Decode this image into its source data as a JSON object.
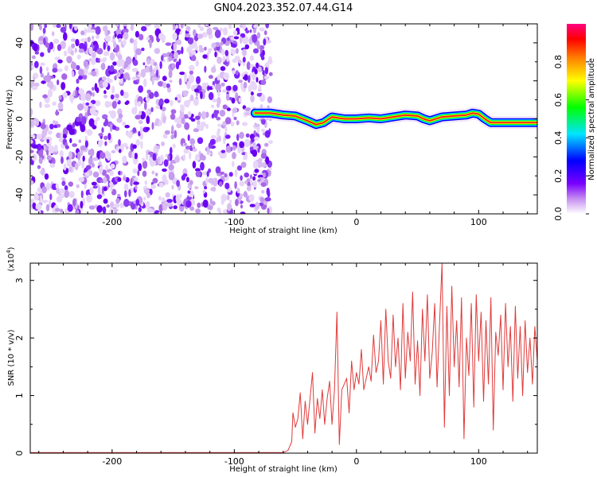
{
  "title": "GN04.2023.352.07.44.G14",
  "chart_data": [
    {
      "type": "heatmap",
      "xlabel": "Height of straight line (km)",
      "ylabel": "Frequency (Hz)",
      "xlim": [
        -267,
        148
      ],
      "ylim": [
        -50,
        50
      ],
      "xticks": [
        -200,
        -100,
        0,
        100
      ],
      "yticks": [
        -40,
        -20,
        0,
        20,
        40
      ],
      "noise_region_x": [
        -267,
        -70
      ],
      "ridge_x": [
        -83,
        -70,
        -60,
        -50,
        -40,
        -33,
        -27,
        -20,
        -10,
        0,
        10,
        20,
        30,
        40,
        50,
        55,
        60,
        70,
        80,
        90,
        95,
        100,
        105,
        110,
        120,
        130,
        140,
        148
      ],
      "ridge_freq": [
        3,
        3,
        2,
        1.5,
        -1,
        -3,
        -2,
        1,
        0,
        0,
        0.5,
        0,
        1,
        2,
        1.5,
        0,
        -1,
        1,
        1.5,
        2,
        3,
        2.5,
        0,
        -2,
        -2,
        -2,
        -2,
        -2
      ],
      "colorbar": {
        "label": "Normalized spectral amplitude",
        "ticks": [
          "0.0",
          "0.2",
          "0.4",
          "0.6",
          "0.8"
        ],
        "range": [
          0,
          1
        ]
      }
    },
    {
      "type": "line",
      "xlabel": "Height of straight line (km)",
      "ylabel": "SNR (10 * v/v)",
      "y_multiplier_text": "(x10",
      "y_multiplier_exp": "4",
      "xlim": [
        -267,
        148
      ],
      "ylim": [
        0,
        3.3
      ],
      "xticks": [
        -200,
        -100,
        0,
        100
      ],
      "yticks": [
        0,
        1,
        2,
        3
      ],
      "color": "#e03a3a",
      "x": [
        -267,
        -60,
        -56,
        -53,
        -52,
        -50,
        -48,
        -46,
        -44,
        -42,
        -40,
        -38,
        -36,
        -34,
        -32,
        -30,
        -28,
        -26,
        -24,
        -22,
        -20,
        -18,
        -16,
        -14,
        -12,
        -10,
        -8,
        -6,
        -4,
        -2,
        0,
        2,
        4,
        6,
        8,
        10,
        12,
        14,
        16,
        18,
        20,
        22,
        24,
        26,
        28,
        30,
        32,
        34,
        36,
        38,
        40,
        42,
        44,
        46,
        48,
        50,
        52,
        54,
        56,
        58,
        60,
        62,
        64,
        66,
        68,
        70,
        72,
        74,
        76,
        78,
        80,
        82,
        84,
        86,
        88,
        90,
        92,
        94,
        96,
        98,
        100,
        102,
        104,
        106,
        108,
        110,
        112,
        114,
        116,
        118,
        120,
        122,
        124,
        126,
        128,
        130,
        132,
        134,
        136,
        138,
        140,
        142,
        144,
        146,
        148
      ],
      "y": [
        0.01,
        0.01,
        0.05,
        0.2,
        0.7,
        0.45,
        0.6,
        1.05,
        0.25,
        0.9,
        0.5,
        0.95,
        1.4,
        0.35,
        0.95,
        0.6,
        1.1,
        0.5,
        0.95,
        1.25,
        0.5,
        1.1,
        2.45,
        0.15,
        1.1,
        1.2,
        1.3,
        0.7,
        1.6,
        1.1,
        1.4,
        1.2,
        1.8,
        1.1,
        1.3,
        1.5,
        1.25,
        2.05,
        1.4,
        1.6,
        2.3,
        1.2,
        2.5,
        1.6,
        1.3,
        2.4,
        1.5,
        2.0,
        1.1,
        2.6,
        1.3,
        2.1,
        1.6,
        2.8,
        1.2,
        1.95,
        1.0,
        2.5,
        1.6,
        2.75,
        1.3,
        1.75,
        2.6,
        1.15,
        2.25,
        3.3,
        0.45,
        2.55,
        1.0,
        2.9,
        1.5,
        2.3,
        1.15,
        2.7,
        0.25,
        2.0,
        1.35,
        2.6,
        0.8,
        2.75,
        1.6,
        2.45,
        0.9,
        2.3,
        1.2,
        2.7,
        0.4,
        2.1,
        1.7,
        2.4,
        1.1,
        2.6,
        1.5,
        2.2,
        0.9,
        2.55,
        1.3,
        2.2,
        1.0,
        2.3,
        1.4,
        2.0,
        1.2,
        2.2,
        1.6
      ]
    }
  ]
}
